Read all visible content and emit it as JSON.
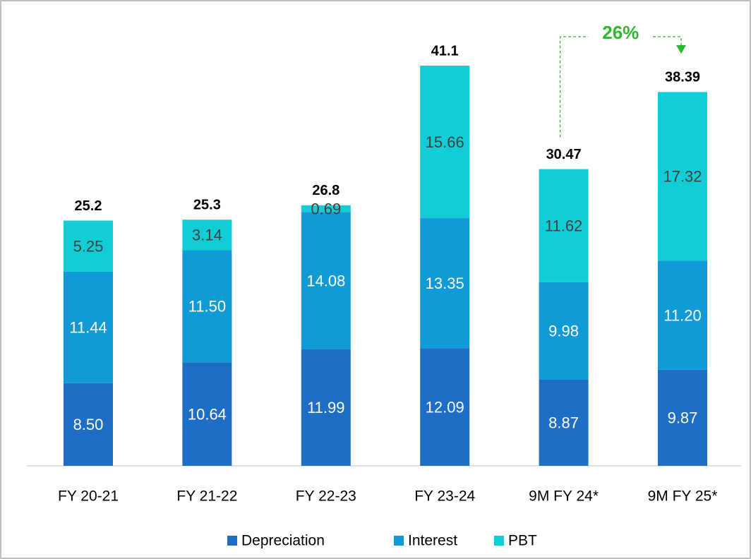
{
  "chart_data": {
    "type": "stacked_bar",
    "categories": [
      "FY 20-21",
      "FY 21-22",
      "FY 22-23",
      "FY 23-24",
      "9M FY 24*",
      "9M FY 25*"
    ],
    "series": [
      {
        "name": "Depreciation",
        "color": "#1f6ec6",
        "label_color": "#ffffff",
        "values": [
          8.5,
          10.64,
          11.99,
          12.09,
          8.87,
          9.87
        ],
        "value_labels": [
          "8.50",
          "10.64",
          "11.99",
          "12.09",
          "8.87",
          "9.87"
        ]
      },
      {
        "name": "Interest",
        "color": "#109bd7",
        "label_color": "#ffffff",
        "values": [
          11.44,
          11.5,
          14.08,
          13.35,
          9.98,
          11.2
        ],
        "value_labels": [
          "11.44",
          "11.50",
          "14.08",
          "13.35",
          "9.98",
          "11.20"
        ]
      },
      {
        "name": "PBT",
        "color": "#13cdd6",
        "label_color": "#404040",
        "values": [
          5.25,
          3.14,
          0.69,
          15.66,
          11.62,
          17.32
        ],
        "value_labels": [
          "5.25",
          "3.14",
          "0.69",
          "15.66",
          "11.62",
          "17.32"
        ]
      }
    ],
    "totals": [
      25.2,
      25.3,
      26.8,
      41.1,
      30.47,
      38.39
    ],
    "annotation": {
      "text": "26%",
      "color": "#2db82d",
      "from": 4,
      "to": 5
    },
    "legend": "bottom"
  }
}
